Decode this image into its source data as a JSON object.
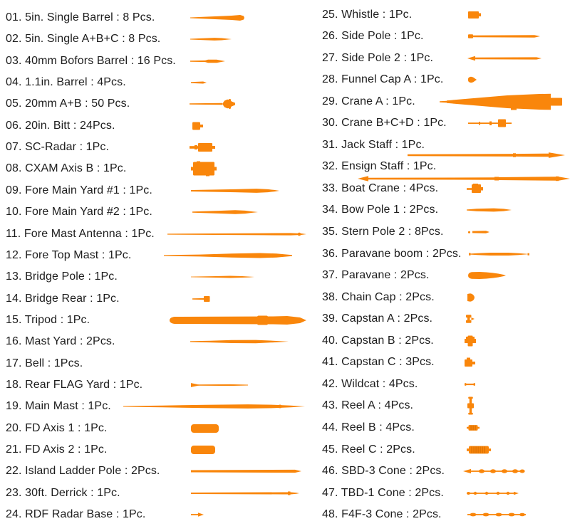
{
  "sheet": {
    "type": "model-kit-parts-list",
    "background": "#ffffff"
  },
  "colors": {
    "part": "#F9860B",
    "part_dark": "#D96F00",
    "text": "#1d1d1d"
  },
  "columns": {
    "left": [
      {
        "num": "01.",
        "name": "5in. Single Barrel",
        "qty": "8 Pcs.",
        "label": "01. 5in. Single Barrel : 8 Pcs.",
        "icon": "5in-single-barrel"
      },
      {
        "num": "02.",
        "name": "5in. Single A+B+C",
        "qty": "8 Pcs.",
        "label": "02. 5in. Single A+B+C : 8 Pcs.",
        "icon": "5in-single-abc"
      },
      {
        "num": "03.",
        "name": "40mm Bofors Barrel",
        "qty": "16 Pcs.",
        "label": "03. 40mm Bofors Barrel : 16 Pcs.",
        "icon": "40mm-bofors-barrel"
      },
      {
        "num": "04.",
        "name": "1.1in. Barrel",
        "qty": "4Pcs.",
        "label": "04. 1.1in. Barrel : 4Pcs.",
        "icon": "1-1in-barrel"
      },
      {
        "num": "05.",
        "name": "20mm A+B",
        "qty": "50 Pcs.",
        "label": "05. 20mm A+B : 50 Pcs.",
        "icon": "20mm-ab"
      },
      {
        "num": "06.",
        "name": "20in. Bitt",
        "qty": "24Pcs.",
        "label": "06. 20in. Bitt : 24Pcs.",
        "icon": "20in-bitt"
      },
      {
        "num": "07.",
        "name": "SC-Radar",
        "qty": "1Pc.",
        "label": "07. SC-Radar : 1Pc.",
        "icon": "sc-radar"
      },
      {
        "num": "08.",
        "name": "CXAM Axis B",
        "qty": "1Pc.",
        "label": "08. CXAM Axis B : 1Pc.",
        "icon": "cxam-axis-b"
      },
      {
        "num": "09.",
        "name": "Fore Main Yard #1",
        "qty": "1Pc.",
        "label": "09. Fore Main Yard #1 : 1Pc.",
        "icon": "fore-main-yard-1"
      },
      {
        "num": "10.",
        "name": "Fore Main Yard #2",
        "qty": "1Pc.",
        "label": "10. Fore Main Yard #2 : 1Pc.",
        "icon": "fore-main-yard-2"
      },
      {
        "num": "11.",
        "name": "Fore Mast Antenna",
        "qty": "1Pc.",
        "label": "11. Fore Mast Antenna : 1Pc.",
        "icon": "fore-mast-antenna"
      },
      {
        "num": "12.",
        "name": "Fore Top Mast",
        "qty": "1Pc.",
        "label": "12. Fore  Top Mast : 1Pc.",
        "icon": "fore-top-mast"
      },
      {
        "num": "13.",
        "name": "Bridge Pole",
        "qty": "1Pc.",
        "label": "13. Bridge Pole : 1Pc.",
        "icon": "bridge-pole"
      },
      {
        "num": "14.",
        "name": "Bridge Rear",
        "qty": "1Pc.",
        "label": "14. Bridge Rear : 1Pc.",
        "icon": "bridge-rear"
      },
      {
        "num": "15.",
        "name": "Tripod",
        "qty": "1Pc.",
        "label": "15. Tripod : 1Pc.",
        "icon": "tripod"
      },
      {
        "num": "16.",
        "name": "Mast Yard",
        "qty": "2Pcs.",
        "label": "16. Mast Yard : 2Pcs.",
        "icon": "mast-yard"
      },
      {
        "num": "17.",
        "name": "Bell",
        "qty": "1Pcs.",
        "label": "17. Bell : 1Pcs.",
        "icon": "bell"
      },
      {
        "num": "18.",
        "name": "Rear FLAG Yard",
        "qty": "1Pc.",
        "label": "18. Rear  FLAG Yard : 1Pc.",
        "icon": "rear-flag-yard"
      },
      {
        "num": "19.",
        "name": "Main Mast",
        "qty": "1Pc.",
        "label": "19. Main Mast : 1Pc.",
        "icon": "main-mast"
      },
      {
        "num": "20.",
        "name": "FD Axis 1",
        "qty": "1Pc.",
        "label": "20. FD Axis 1 : 1Pc.",
        "icon": "fd-axis-1"
      },
      {
        "num": "21.",
        "name": "FD Axis 2",
        "qty": "1Pc.",
        "label": "21. FD Axis 2 : 1Pc.",
        "icon": "fd-axis-2"
      },
      {
        "num": "22.",
        "name": "Island Ladder Pole",
        "qty": "2Pcs.",
        "label": "22. Island Ladder Pole : 2Pcs.",
        "icon": "island-ladder-pole"
      },
      {
        "num": "23.",
        "name": "30ft. Derrick",
        "qty": "1Pc.",
        "label": "23. 30ft. Derrick : 1Pc.",
        "icon": "30ft-derrick"
      },
      {
        "num": "24.",
        "name": "RDF Radar Base",
        "qty": "1Pc.",
        "label": "24. RDF Radar Base : 1Pc.",
        "icon": "rdf-radar-base"
      }
    ],
    "right": [
      {
        "num": "25.",
        "name": "Whistle",
        "qty": "1Pc.",
        "label": "25. Whistle : 1Pc.",
        "icon": "whistle"
      },
      {
        "num": "26.",
        "name": "Side Pole",
        "qty": "1Pc.",
        "label": "26. Side Pole : 1Pc.",
        "icon": "side-pole"
      },
      {
        "num": "27.",
        "name": "Side Pole 2",
        "qty": "1Pc.",
        "label": "27. Side Pole 2 : 1Pc.",
        "icon": "side-pole-2"
      },
      {
        "num": "28.",
        "name": "Funnel Cap A",
        "qty": "1Pc.",
        "label": "28. Funnel Cap A : 1Pc.",
        "icon": "funnel-cap-a"
      },
      {
        "num": "29.",
        "name": "Crane A",
        "qty": "1Pc.",
        "label": "29. Crane A : 1Pc.",
        "icon": "crane-a"
      },
      {
        "num": "30.",
        "name": "Crane B+C+D",
        "qty": "1Pc.",
        "label": "30. Crane B+C+D : 1Pc.",
        "icon": "crane-bcd"
      },
      {
        "num": "31.",
        "name": "Jack Staff",
        "qty": "1Pc.",
        "label": "31. Jack Staff : 1Pc.",
        "icon": "jack-staff"
      },
      {
        "num": "32.",
        "name": "Ensign Staff",
        "qty": "1Pc.",
        "label": "32. Ensign Staff : 1Pc.",
        "icon": "ensign-staff"
      },
      {
        "num": "33.",
        "name": "Boat Crane",
        "qty": "4Pcs.",
        "label": "33. Boat Crane : 4Pcs.",
        "icon": "boat-crane"
      },
      {
        "num": "34.",
        "name": "Bow Pole 1",
        "qty": "2Pcs.",
        "label": "34. Bow Pole 1 : 2Pcs.",
        "icon": "bow-pole-1"
      },
      {
        "num": "35.",
        "name": "Stern Pole 2",
        "qty": "8Pcs.",
        "label": "35. Stern Pole 2 : 8Pcs.",
        "icon": "stern-pole-2"
      },
      {
        "num": "36.",
        "name": "Paravane boom",
        "qty": "2Pcs.",
        "label": "36. Paravane boom : 2Pcs.",
        "icon": "paravane-boom"
      },
      {
        "num": "37.",
        "name": "Paravane",
        "qty": "2Pcs.",
        "label": "37. Paravane : 2Pcs.",
        "icon": "paravane"
      },
      {
        "num": "38.",
        "name": "Chain Cap",
        "qty": "2Pcs.",
        "label": "38. Chain Cap : 2Pcs.",
        "icon": "chain-cap"
      },
      {
        "num": "39.",
        "name": "Capstan A",
        "qty": "2Pcs.",
        "label": "39. Capstan A : 2Pcs.",
        "icon": "capstan-a"
      },
      {
        "num": "40.",
        "name": "Capstan B",
        "qty": "2Pcs.",
        "label": "40. Capstan B : 2Pcs.",
        "icon": "capstan-b"
      },
      {
        "num": "41.",
        "name": "Capstan C",
        "qty": "3Pcs.",
        "label": "41. Capstan C : 3Pcs.",
        "icon": "capstan-c"
      },
      {
        "num": "42.",
        "name": "Wildcat",
        "qty": "4Pcs.",
        "label": "42. Wildcat : 4Pcs.",
        "icon": "wildcat"
      },
      {
        "num": "43.",
        "name": "Reel A",
        "qty": "4Pcs.",
        "label": "43. Reel A : 4Pcs.",
        "icon": "reel-a"
      },
      {
        "num": "44.",
        "name": "Reel B",
        "qty": "4Pcs.",
        "label": "44. Reel B : 4Pcs.",
        "icon": "reel-b"
      },
      {
        "num": "45.",
        "name": "Reel C",
        "qty": "2Pcs.",
        "label": "45. Reel C : 2Pcs.",
        "icon": "reel-c"
      },
      {
        "num": "46.",
        "name": "SBD-3 Cone",
        "qty": "2Pcs.",
        "label": "46. SBD-3 Cone : 2Pcs.",
        "icon": "sbd-3-cone"
      },
      {
        "num": "47.",
        "name": "TBD-1 Cone",
        "qty": "2Pcs.",
        "label": "47. TBD-1 Cone : 2Pcs.",
        "icon": "tbd-1-cone"
      },
      {
        "num": "48.",
        "name": "F4F-3 Cone",
        "qty": "2Pcs.",
        "label": "48. F4F-3 Cone : 2Pcs.",
        "icon": "f4f-3-cone"
      }
    ]
  }
}
